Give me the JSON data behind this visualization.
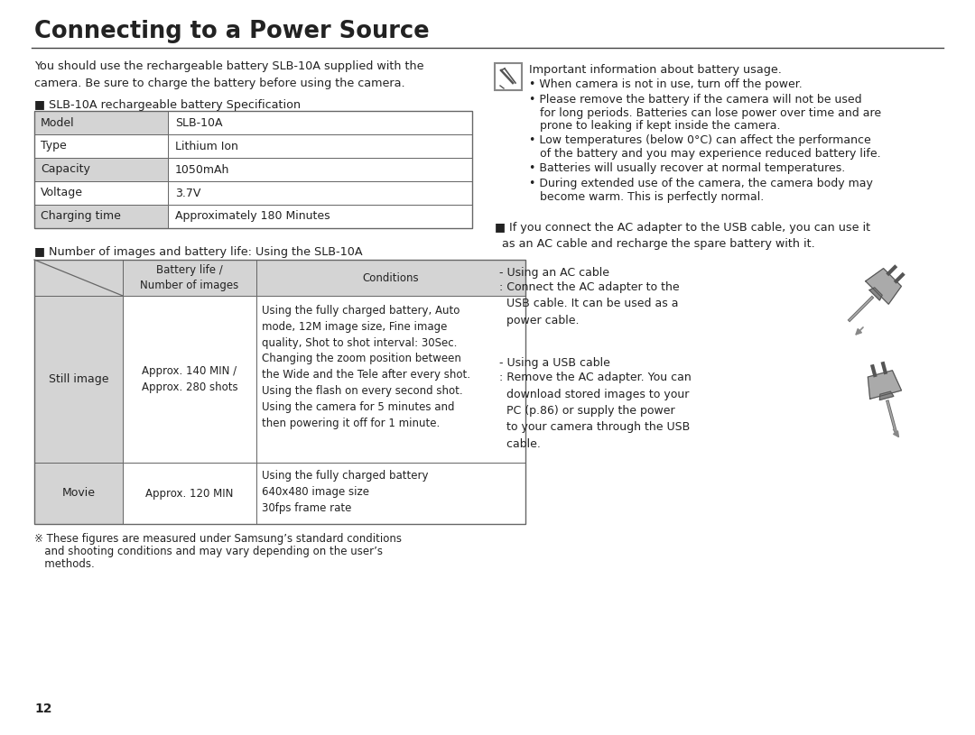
{
  "title": "Connecting to a Power Source",
  "bg_color": "#ffffff",
  "text_color": "#222222",
  "intro_text": "You should use the rechargeable battery SLB-10A supplied with the\ncamera. Be sure to charge the battery before using the camera.",
  "spec_header": "■ SLB-10A rechargeable battery Specification",
  "spec_table": [
    [
      "Model",
      "SLB-10A"
    ],
    [
      "Type",
      "Lithium Ion"
    ],
    [
      "Capacity",
      "1050mAh"
    ],
    [
      "Voltage",
      "3.7V"
    ],
    [
      "Charging time",
      "Approximately 180 Minutes"
    ]
  ],
  "battery_header": "■ Number of images and battery life: Using the SLB-10A",
  "battery_col_headers": [
    "",
    "Battery life /\nNumber of images",
    "Conditions"
  ],
  "battery_rows": [
    {
      "col0": "Still image",
      "col1": "Approx. 140 MIN /\nApprox. 280 shots",
      "col2": "Using the fully charged battery, Auto\nmode, 12M image size, Fine image\nquality, Shot to shot interval: 30Sec.\nChanging the zoom position between\nthe Wide and the Tele after every shot.\nUsing the flash on every second shot.\nUsing the camera for 5 minutes and\nthen powering it off for 1 minute."
    },
    {
      "col0": "Movie",
      "col1": "Approx. 120 MIN",
      "col2": "Using the fully charged battery\n640x480 image size\n30fps frame rate"
    }
  ],
  "footnote_line1": "※ These figures are measured under Samsung’s standard conditions",
  "footnote_line2": "   and shooting conditions and may vary depending on the user’s",
  "footnote_line3": "   methods.",
  "page_number": "12",
  "note_title": "Important information about battery usage.",
  "bullets": [
    "When camera is not in use, turn off the power.",
    "Please remove the battery if the camera will not be used\nfor long periods. Batteries can lose power over time and are\nprone to leaking if kept inside the camera.",
    "Low temperatures (below 0°C) can affect the performance\nof the battery and you may experience reduced battery life.",
    "Batteries will usually recover at normal temperatures.",
    "During extended use of the camera, the camera body may\nbecome warm. This is perfectly normal."
  ],
  "ac_adapter_note": "■ If you connect the AC adapter to the USB cable, you can use it\n  as an AC cable and recharge the spare battery with it.",
  "ac_label": "- Using an AC cable",
  "ac_desc": ": Connect the AC adapter to the\n  USB cable. It can be used as a\n  power cable.",
  "usb_label": "- Using a USB cable",
  "usb_desc": ": Remove the AC adapter. You can\n  download stored images to your\n  PC (p.86) or supply the power\n  to your camera through the USB\n  cable.",
  "table_hdr_bg": "#d4d4d4",
  "table_alt_bg": "#f2f2f2",
  "border_color": "#666666",
  "divider_color": "#444444"
}
